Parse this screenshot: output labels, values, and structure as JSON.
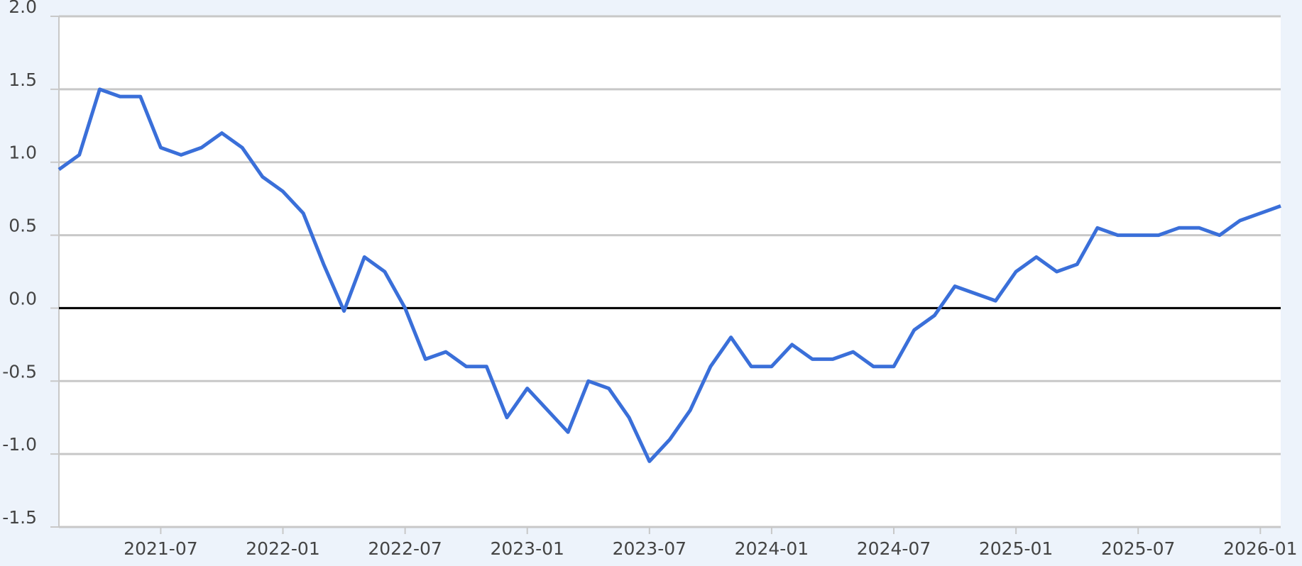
{
  "chart_data": {
    "type": "line",
    "x": [
      "2021-02",
      "2021-03",
      "2021-04",
      "2021-05",
      "2021-06",
      "2021-07",
      "2021-08",
      "2021-09",
      "2021-10",
      "2021-11",
      "2021-12",
      "2022-01",
      "2022-02",
      "2022-03",
      "2022-04",
      "2022-05",
      "2022-06",
      "2022-07",
      "2022-08",
      "2022-09",
      "2022-10",
      "2022-11",
      "2022-12",
      "2023-01",
      "2023-02",
      "2023-03",
      "2023-04",
      "2023-05",
      "2023-06",
      "2023-07",
      "2023-08",
      "2023-09",
      "2023-10",
      "2023-11",
      "2023-12",
      "2024-01",
      "2024-02",
      "2024-03",
      "2024-04",
      "2024-05",
      "2024-06",
      "2024-07",
      "2024-08",
      "2024-09",
      "2024-10",
      "2024-11",
      "2024-12",
      "2025-01",
      "2025-02",
      "2025-03",
      "2025-04",
      "2025-05",
      "2025-06",
      "2025-07",
      "2025-08",
      "2025-09",
      "2025-10",
      "2025-11",
      "2025-12",
      "2026-01",
      "2026-02"
    ],
    "values": [
      0.95,
      1.05,
      1.5,
      1.45,
      1.45,
      1.1,
      1.05,
      1.1,
      1.2,
      1.1,
      0.9,
      0.8,
      0.65,
      0.3,
      -0.02,
      0.35,
      0.25,
      0.0,
      -0.35,
      -0.3,
      -0.4,
      -0.4,
      -0.75,
      -0.55,
      -0.7,
      -0.85,
      -0.5,
      -0.55,
      -0.75,
      -1.05,
      -0.9,
      -0.7,
      -0.4,
      -0.2,
      -0.4,
      -0.4,
      -0.25,
      -0.35,
      -0.35,
      -0.3,
      -0.4,
      -0.4,
      -0.15,
      -0.05,
      0.15,
      0.1,
      0.05,
      0.25,
      0.35,
      0.25,
      0.3,
      0.55,
      0.5,
      0.5,
      0.5,
      0.55,
      0.55,
      0.5,
      0.6,
      0.65,
      0.7
    ],
    "color": "#3a6fd9",
    "xlim": [
      "2021-02",
      "2026-02"
    ],
    "xticks": [
      "2021-07",
      "2022-01",
      "2022-07",
      "2023-01",
      "2023-07",
      "2024-01",
      "2024-07",
      "2025-01",
      "2025-07",
      "2026-01"
    ],
    "ylim": [
      -1.5,
      2.0
    ],
    "yticks": [
      {
        "value": 2,
        "label": "2.0"
      },
      1.5,
      {
        "value": 1,
        "label": "1.0"
      },
      0.5,
      {
        "value": 0,
        "label": "0.0"
      },
      -0.5,
      {
        "value": -1,
        "label": "-1.0"
      },
      -1.5
    ],
    "grid": true,
    "zero_line": true
  }
}
